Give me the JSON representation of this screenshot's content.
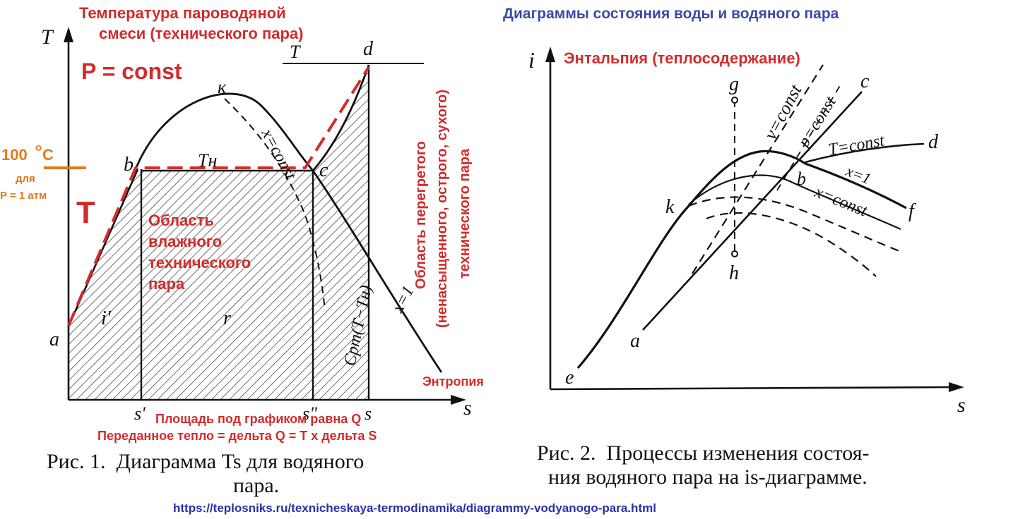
{
  "header": {
    "right_title": "Диаграммы состояния воды и водяного пара"
  },
  "fig1": {
    "annotations": {
      "temp_line1": "Температура пароводяной",
      "temp_line2": "смеси (технического пара)",
      "p_const": "P = const",
      "t100_value": "100",
      "t100_unit": "C",
      "t100_degree": "o",
      "for": "для",
      "patm": "P = 1 атм",
      "big_t": "T",
      "wet_line1": "Область",
      "wet_line2": "влажного",
      "wet_line3": "технического",
      "wet_line4": "пара",
      "super_line1": "Область перегретого",
      "super_line2": "(ненасыщенного, острого, сухого)",
      "super_line3": "технического пара",
      "entropy": "Энтропия",
      "area_note": "Площадь под графиком равна Q",
      "heat_note": "Переданное тепло = дельта Q = T x дельта S"
    },
    "labels": {
      "axis_y": "T",
      "axis_x": "s",
      "T_top": "T",
      "d": "d",
      "k": "к",
      "b": "b",
      "c": "c",
      "a": "a",
      "Tn": "Tн",
      "xconst": "x=const",
      "x1": "x=1",
      "i_prime": "i'",
      "r": "r",
      "cpm": "Cpm(T−Tн)",
      "s1": "s'",
      "s2": "s\"",
      "s": "s"
    },
    "caption_line1": "Рис. 1.  Диаграмма Ts для водяного",
    "caption_line2": "пара."
  },
  "fig2": {
    "annotations": {
      "enthalpy": "Энтальпия (теплосодержание)"
    },
    "labels": {
      "axis_y": "i",
      "axis_x": "s",
      "g": "g",
      "vconst": "v=const",
      "pconst": "p=const",
      "c": "c",
      "Tconst": "T=const",
      "d": "d",
      "b": "b",
      "x1": "x=1",
      "xconst": "x=const",
      "f": "f",
      "k": "k",
      "h": "h",
      "a": "a",
      "e": "e"
    },
    "caption_line1": "Рис. 2.  Процессы изменения состоя-",
    "caption_line2": "ния водяного пара на is-диаграмме."
  },
  "footer": {
    "url": "https://teplosniks.ru/texnicheskaya-termodinamika/diagrammy-vodyanogo-para.html"
  },
  "colors": {
    "red": "#d12c2c",
    "orange": "#e07b1a",
    "blue": "#3b4aa8",
    "ink": "#111111"
  }
}
